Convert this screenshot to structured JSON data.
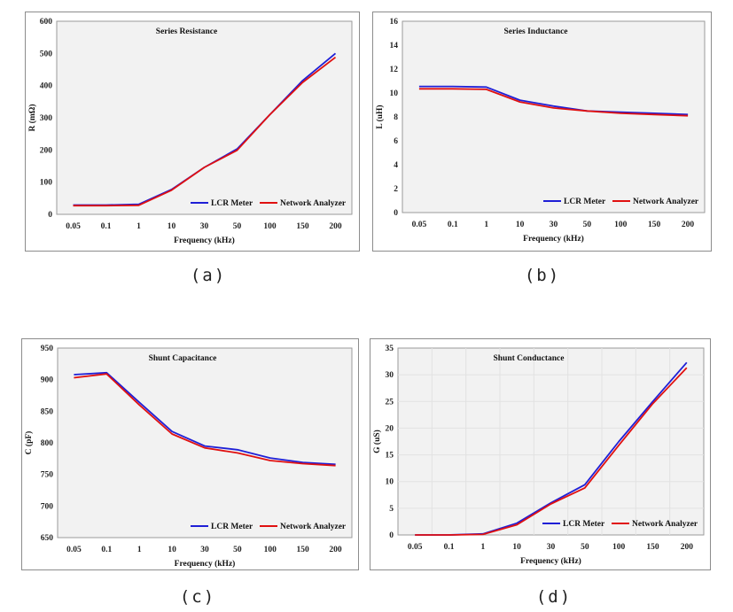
{
  "chart_data": [
    {
      "type": "line",
      "title": "Series Resistance",
      "xlabel": "Frequency (kHz)",
      "ylabel": "R (mΩ)",
      "caption": "(a)",
      "categories": [
        "0.05",
        "0.1",
        "1",
        "10",
        "30",
        "50",
        "100",
        "150",
        "200"
      ],
      "ylim": [
        0,
        600
      ],
      "yticks": [
        0,
        100,
        200,
        300,
        400,
        500,
        600
      ],
      "grid": false,
      "legend": "bottom-right",
      "series": [
        {
          "name": "LCR Meter",
          "color": "#1f1fd6",
          "values": [
            29,
            29,
            31,
            77,
            146,
            203,
            310,
            416,
            500
          ]
        },
        {
          "name": "Network Analyzer",
          "color": "#e01010",
          "values": [
            27,
            27,
            28,
            75,
            146,
            199,
            310,
            410,
            488
          ]
        }
      ]
    },
    {
      "type": "line",
      "title": "Series Inductance",
      "xlabel": "Frequency (kHz)",
      "ylabel": "L (uH)",
      "caption": "(b)",
      "categories": [
        "0.05",
        "0.1",
        "1",
        "10",
        "30",
        "50",
        "100",
        "150",
        "200"
      ],
      "ylim": [
        0,
        16
      ],
      "yticks": [
        0,
        2,
        4,
        6,
        8,
        10,
        12,
        14,
        16
      ],
      "grid": false,
      "legend": "bottom-right",
      "series": [
        {
          "name": "LCR Meter",
          "color": "#1f1fd6",
          "values": [
            10.55,
            10.55,
            10.5,
            9.4,
            8.9,
            8.5,
            8.4,
            8.3,
            8.2
          ]
        },
        {
          "name": "Network Analyzer",
          "color": "#e01010",
          "values": [
            10.35,
            10.35,
            10.3,
            9.25,
            8.75,
            8.5,
            8.3,
            8.2,
            8.1
          ]
        }
      ]
    },
    {
      "type": "line",
      "title": "Shunt Capacitance",
      "xlabel": "Frequency (kHz)",
      "ylabel": "C (pF)",
      "caption": "(c)",
      "categories": [
        "0.05",
        "0.1",
        "1",
        "10",
        "30",
        "50",
        "100",
        "150",
        "200"
      ],
      "ylim": [
        650,
        950
      ],
      "yticks": [
        650,
        700,
        750,
        800,
        850,
        900,
        950
      ],
      "grid": false,
      "legend": "bottom-right",
      "series": [
        {
          "name": "LCR Meter",
          "color": "#1f1fd6",
          "values": [
            908,
            911,
            864,
            818,
            795,
            789,
            776,
            769,
            766
          ]
        },
        {
          "name": "Network Analyzer",
          "color": "#e01010",
          "values": [
            903,
            909,
            860,
            814,
            792,
            784,
            772,
            767,
            764
          ]
        }
      ]
    },
    {
      "type": "line",
      "title": "Shunt Conductance",
      "xlabel": "Frequency (kHz)",
      "ylabel": "G (uS)",
      "caption": "(d)",
      "categories": [
        "0.05",
        "0.1",
        "1",
        "10",
        "30",
        "50",
        "100",
        "150",
        "200"
      ],
      "ylim": [
        0,
        35
      ],
      "yticks": [
        0,
        5,
        10,
        15,
        20,
        25,
        30,
        35
      ],
      "grid": true,
      "legend": "bottom-right",
      "series": [
        {
          "name": "LCR Meter",
          "color": "#1f1fd6",
          "values": [
            0,
            0,
            0.2,
            2.2,
            6.0,
            9.4,
            17.5,
            25.0,
            32.3
          ]
        },
        {
          "name": "Network Analyzer",
          "color": "#e01010",
          "values": [
            0,
            0,
            0.1,
            1.9,
            5.8,
            8.8,
            16.8,
            24.6,
            31.3
          ]
        }
      ]
    }
  ]
}
